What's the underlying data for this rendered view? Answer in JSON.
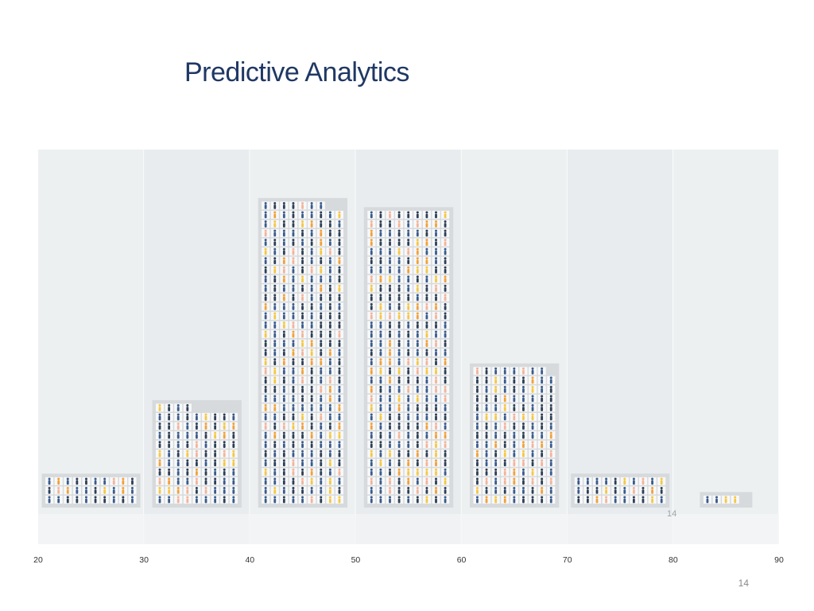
{
  "slide": {
    "title": "Predictive Analytics",
    "page_number": "14"
  },
  "chart_data": {
    "type": "bar",
    "title": "",
    "xlabel": "",
    "ylabel": "",
    "bins": [
      {
        "x0": 20,
        "x1": 30,
        "columns": 10,
        "rows": 3,
        "last_row": 10
      },
      {
        "x0": 30,
        "x1": 40,
        "columns": 9,
        "rows": 11,
        "last_row": 4
      },
      {
        "x0": 40,
        "x1": 50,
        "columns": 9,
        "rows": 33,
        "last_row": 7
      },
      {
        "x0": 50,
        "x1": 60,
        "columns": 9,
        "rows": 32,
        "last_row": 9
      },
      {
        "x0": 60,
        "x1": 70,
        "columns": 9,
        "rows": 15,
        "last_row": 8
      },
      {
        "x0": 70,
        "x1": 80,
        "columns": 10,
        "rows": 3,
        "last_row": 10
      },
      {
        "x0": 80,
        "x1": 90,
        "columns": 5,
        "rows": 1,
        "last_row": 4
      }
    ],
    "x_ticks": [
      "20",
      "30",
      "40",
      "50",
      "60",
      "70",
      "80",
      "90"
    ],
    "xlim": [
      20,
      90
    ],
    "inner_label": "14",
    "grid": true,
    "legend": "none",
    "colors": {
      "panel_a": "#edf0f1",
      "panel_b": "#e8ecee",
      "bar_bg": "#d7dadc",
      "icon_blue": "#3a5b8c",
      "icon_dark": "#2e3f55",
      "icon_orange": "#f2a13a",
      "icon_yellow": "#f5c844",
      "icon_peach": "#f3b49a"
    }
  }
}
